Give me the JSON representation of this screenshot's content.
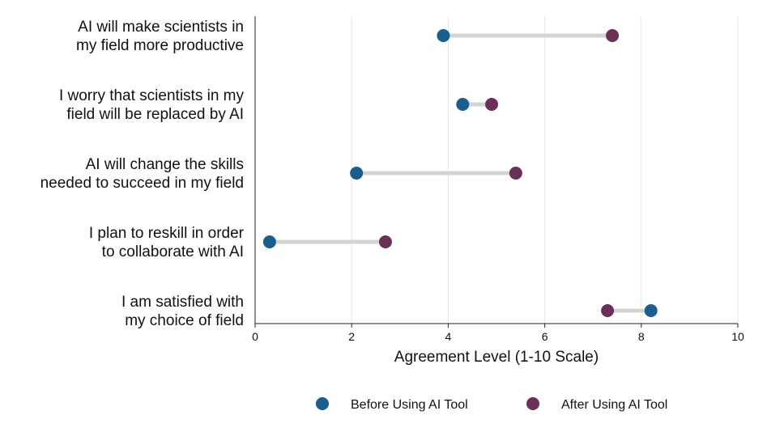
{
  "chart_data": {
    "type": "scatter",
    "subtype": "dumbbell",
    "xlabel": "Agreement Level (1-10 Scale)",
    "xlim": [
      0,
      10
    ],
    "xticks": [
      "0",
      "2",
      "4",
      "6",
      "8",
      "10"
    ],
    "grid": true,
    "legend_position": "bottom",
    "categories": [
      [
        "AI will make scientists in",
        "my field more productive"
      ],
      [
        "I worry that scientists in my",
        "field will be replaced by AI"
      ],
      [
        "AI will change the skills",
        "needed to succeed in my field"
      ],
      [
        "I plan to reskill in order",
        "to collaborate with AI"
      ],
      [
        "I am satisfied with ",
        "my choice of field"
      ]
    ],
    "series": [
      {
        "name": "Before Using AI Tool",
        "color": "#1a5e8e",
        "values": [
          3.9,
          4.3,
          2.1,
          0.3,
          8.2
        ]
      },
      {
        "name": "After Using AI Tool",
        "color": "#6b3058",
        "values": [
          7.4,
          4.9,
          5.4,
          2.7,
          7.3
        ]
      }
    ],
    "connector_color": "#d4d4d4",
    "grid_color": "#e6e6e6"
  }
}
